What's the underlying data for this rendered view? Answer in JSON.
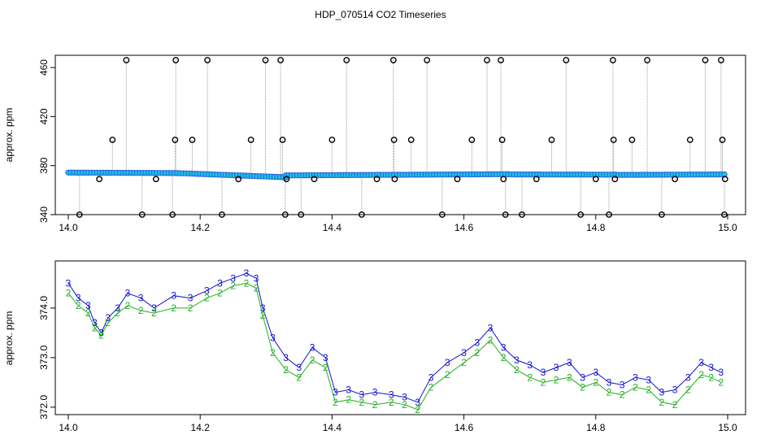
{
  "chart_data": [
    {
      "type": "scatter",
      "title": "HDP_070514  CO2 Timeseries",
      "xlabel": "",
      "ylabel": "approx. ppm",
      "xlim": [
        14.0,
        15.0
      ],
      "ylim": [
        340,
        470
      ],
      "x_ticks": [
        "14.0",
        "14.2",
        "14.4",
        "14.6",
        "14.8",
        "15.0"
      ],
      "y_ticks": [
        "340",
        "380",
        "420",
        "460"
      ],
      "grid": false,
      "colors": {
        "baseline": "#2f5fe0",
        "baseline_fill": "#18c8e0",
        "outlier": "#000000",
        "connector": "#9a9a9a"
      },
      "segments": [
        {
          "x0": 14.0,
          "x1": 14.165,
          "y0": 374.3,
          "y1": 373.9
        },
        {
          "x0": 14.165,
          "x1": 14.33,
          "y0": 373.9,
          "y1": 370.5
        },
        {
          "x0": 14.33,
          "x1": 14.667,
          "y0": 372.0,
          "y1": 373.0
        },
        {
          "x0": 14.667,
          "x1": 14.83,
          "y0": 372.8,
          "y1": 372.6
        },
        {
          "x0": 14.83,
          "x1": 14.995,
          "y0": 372.4,
          "y1": 372.8
        }
      ],
      "outliers": [
        {
          "x": 14.017,
          "y": 340
        },
        {
          "x": 14.047,
          "y": 369
        },
        {
          "x": 14.067,
          "y": 401
        },
        {
          "x": 14.088,
          "y": 466
        },
        {
          "x": 14.112,
          "y": 340
        },
        {
          "x": 14.133,
          "y": 369
        },
        {
          "x": 14.158,
          "y": 340
        },
        {
          "x": 14.162,
          "y": 401
        },
        {
          "x": 14.163,
          "y": 466
        },
        {
          "x": 14.188,
          "y": 401
        },
        {
          "x": 14.211,
          "y": 466
        },
        {
          "x": 14.233,
          "y": 340
        },
        {
          "x": 14.258,
          "y": 369
        },
        {
          "x": 14.277,
          "y": 401
        },
        {
          "x": 14.299,
          "y": 466
        },
        {
          "x": 14.322,
          "y": 466
        },
        {
          "x": 14.325,
          "y": 401
        },
        {
          "x": 14.329,
          "y": 340
        },
        {
          "x": 14.331,
          "y": 369
        },
        {
          "x": 14.353,
          "y": 340
        },
        {
          "x": 14.373,
          "y": 369
        },
        {
          "x": 14.4,
          "y": 401
        },
        {
          "x": 14.422,
          "y": 466
        },
        {
          "x": 14.445,
          "y": 340
        },
        {
          "x": 14.468,
          "y": 369
        },
        {
          "x": 14.493,
          "y": 466
        },
        {
          "x": 14.494,
          "y": 401
        },
        {
          "x": 14.495,
          "y": 369
        },
        {
          "x": 14.52,
          "y": 401
        },
        {
          "x": 14.544,
          "y": 466
        },
        {
          "x": 14.567,
          "y": 340
        },
        {
          "x": 14.59,
          "y": 369
        },
        {
          "x": 14.612,
          "y": 401
        },
        {
          "x": 14.635,
          "y": 466
        },
        {
          "x": 14.656,
          "y": 466
        },
        {
          "x": 14.658,
          "y": 401
        },
        {
          "x": 14.66,
          "y": 369
        },
        {
          "x": 14.663,
          "y": 340
        },
        {
          "x": 14.688,
          "y": 340
        },
        {
          "x": 14.71,
          "y": 369
        },
        {
          "x": 14.733,
          "y": 401
        },
        {
          "x": 14.755,
          "y": 466
        },
        {
          "x": 14.777,
          "y": 340
        },
        {
          "x": 14.8,
          "y": 369
        },
        {
          "x": 14.82,
          "y": 340
        },
        {
          "x": 14.826,
          "y": 466
        },
        {
          "x": 14.827,
          "y": 401
        },
        {
          "x": 14.829,
          "y": 369
        },
        {
          "x": 14.855,
          "y": 401
        },
        {
          "x": 14.878,
          "y": 466
        },
        {
          "x": 14.9,
          "y": 340
        },
        {
          "x": 14.92,
          "y": 369
        },
        {
          "x": 14.943,
          "y": 401
        },
        {
          "x": 14.966,
          "y": 466
        },
        {
          "x": 14.99,
          "y": 466
        },
        {
          "x": 14.992,
          "y": 401
        },
        {
          "x": 14.995,
          "y": 340
        },
        {
          "x": 14.996,
          "y": 369
        }
      ]
    },
    {
      "type": "scatter",
      "title": "",
      "xlabel": "",
      "ylabel": "approx. ppm",
      "xlim": [
        14.0,
        15.0
      ],
      "ylim": [
        371.85,
        374.95
      ],
      "x_ticks": [
        "14.0",
        "14.2",
        "14.4",
        "14.6",
        "14.8",
        "15.0"
      ],
      "y_ticks": [
        "372.0",
        "373.0",
        "374.0"
      ],
      "grid": false,
      "series": [
        {
          "name": "3",
          "color": "#1010d0",
          "x": [
            14.0,
            14.015,
            14.03,
            14.04,
            14.05,
            14.06,
            14.075,
            14.09,
            14.11,
            14.13,
            14.16,
            14.185,
            14.21,
            14.23,
            14.25,
            14.27,
            14.285,
            14.295,
            14.31,
            14.33,
            14.35,
            14.37,
            14.39,
            14.405,
            14.425,
            14.445,
            14.465,
            14.49,
            14.51,
            14.53,
            14.55,
            14.575,
            14.6,
            14.62,
            14.64,
            14.66,
            14.68,
            14.7,
            14.72,
            14.74,
            14.76,
            14.78,
            14.8,
            14.82,
            14.84,
            14.86,
            14.88,
            14.9,
            14.92,
            14.94,
            14.96,
            14.975,
            14.99
          ],
          "values": [
            374.5,
            374.2,
            374.05,
            373.7,
            373.5,
            373.8,
            374.0,
            374.3,
            374.2,
            374.0,
            374.25,
            374.2,
            374.35,
            374.5,
            374.6,
            374.7,
            374.6,
            374.0,
            373.4,
            373.0,
            372.8,
            373.2,
            373.0,
            372.3,
            372.35,
            372.25,
            372.3,
            372.25,
            372.2,
            372.1,
            372.6,
            372.9,
            373.1,
            373.3,
            373.6,
            373.2,
            372.95,
            372.85,
            372.7,
            372.8,
            372.9,
            372.6,
            372.7,
            372.5,
            372.45,
            372.6,
            372.55,
            372.3,
            372.35,
            372.6,
            372.9,
            372.8,
            372.7
          ]
        },
        {
          "name": "2",
          "color": "#20b020",
          "x": [
            14.0,
            14.015,
            14.03,
            14.04,
            14.05,
            14.06,
            14.075,
            14.09,
            14.11,
            14.13,
            14.16,
            14.185,
            14.21,
            14.23,
            14.25,
            14.27,
            14.285,
            14.295,
            14.31,
            14.33,
            14.35,
            14.37,
            14.39,
            14.405,
            14.425,
            14.445,
            14.465,
            14.49,
            14.51,
            14.53,
            14.55,
            14.575,
            14.6,
            14.62,
            14.64,
            14.66,
            14.68,
            14.7,
            14.72,
            14.74,
            14.76,
            14.78,
            14.8,
            14.82,
            14.84,
            14.86,
            14.88,
            14.9,
            14.92,
            14.94,
            14.96,
            14.975,
            14.99
          ],
          "values": [
            374.3,
            374.05,
            373.9,
            373.6,
            373.45,
            373.7,
            373.9,
            374.05,
            373.95,
            373.9,
            374.0,
            374.0,
            374.2,
            374.3,
            374.45,
            374.5,
            374.4,
            373.85,
            373.1,
            372.75,
            372.6,
            372.95,
            372.8,
            372.1,
            372.15,
            372.1,
            372.05,
            372.1,
            372.05,
            371.95,
            372.4,
            372.65,
            372.9,
            373.1,
            373.35,
            373.0,
            372.75,
            372.6,
            372.5,
            372.55,
            372.6,
            372.4,
            372.5,
            372.3,
            372.25,
            372.4,
            372.35,
            372.1,
            372.05,
            372.35,
            372.65,
            372.6,
            372.5
          ]
        }
      ]
    }
  ]
}
